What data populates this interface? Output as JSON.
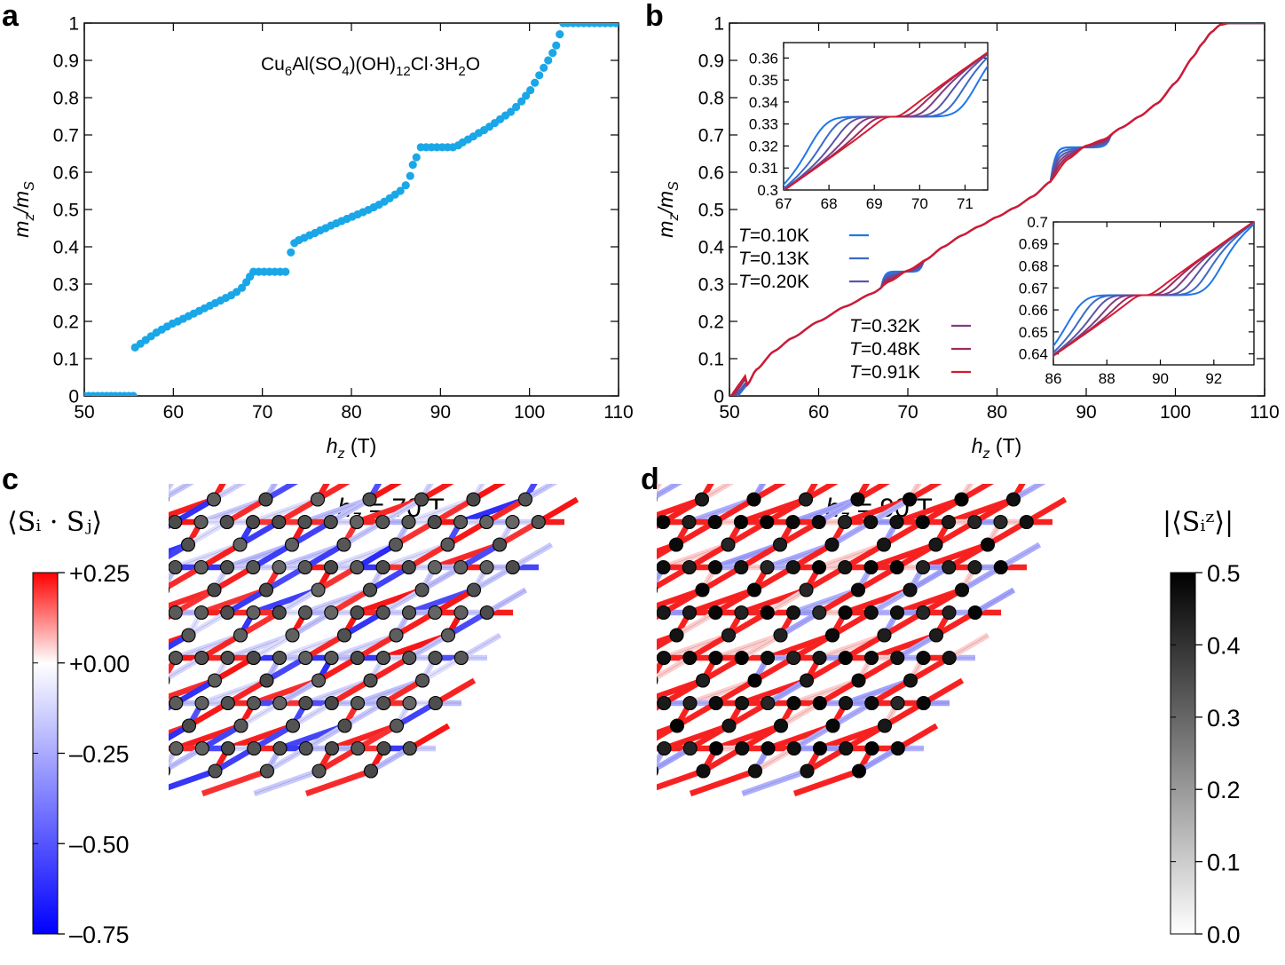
{
  "chart_data": [
    {
      "id": "a",
      "panel_label": "a",
      "type": "scatter",
      "annotation": "Cu6Al(SO4)(OH)12Cl·3H2O",
      "annotation_parts": {
        "base": "Cu",
        "s1": "6",
        "mid1": "Al(SO",
        "s2": "4",
        "mid2": ")(OH)",
        "s3": "12",
        "mid3": "Cl·3H",
        "s4": "2",
        "end": "O"
      },
      "xlabel": "h_z (T)",
      "ylabel": "m_z/m_S",
      "xlim": [
        50,
        110
      ],
      "ylim": [
        0,
        1
      ],
      "xticks": [
        "50",
        "60",
        "70",
        "80",
        "90",
        "100",
        "110"
      ],
      "yticks": [
        "0",
        "0.1",
        "0.2",
        "0.3",
        "0.4",
        "0.5",
        "0.6",
        "0.7",
        "0.8",
        "0.9",
        "1"
      ],
      "color": "#1aa7e8",
      "points": [
        [
          50,
          0
        ],
        [
          50.5,
          0
        ],
        [
          51,
          0
        ],
        [
          51.5,
          0
        ],
        [
          52,
          0
        ],
        [
          52.5,
          0
        ],
        [
          53,
          0
        ],
        [
          53.5,
          0
        ],
        [
          54,
          0
        ],
        [
          54.5,
          0
        ],
        [
          55,
          0
        ],
        [
          55.5,
          0
        ],
        [
          55.7,
          0.13
        ],
        [
          56.3,
          0.14
        ],
        [
          56.9,
          0.15
        ],
        [
          57.5,
          0.16
        ],
        [
          58.1,
          0.17
        ],
        [
          58.7,
          0.178
        ],
        [
          59.3,
          0.186
        ],
        [
          59.9,
          0.194
        ],
        [
          60.5,
          0.2
        ],
        [
          61.1,
          0.207
        ],
        [
          61.7,
          0.214
        ],
        [
          62.3,
          0.221
        ],
        [
          62.9,
          0.228
        ],
        [
          63.5,
          0.235
        ],
        [
          64.1,
          0.242
        ],
        [
          64.7,
          0.249
        ],
        [
          65.3,
          0.256
        ],
        [
          65.9,
          0.263
        ],
        [
          66.5,
          0.27
        ],
        [
          67.1,
          0.279
        ],
        [
          67.7,
          0.29
        ],
        [
          68.2,
          0.305
        ],
        [
          68.6,
          0.32
        ],
        [
          69,
          0.333
        ],
        [
          69.6,
          0.333
        ],
        [
          70.2,
          0.333
        ],
        [
          70.8,
          0.333
        ],
        [
          71.4,
          0.333
        ],
        [
          72,
          0.333
        ],
        [
          72.6,
          0.333
        ],
        [
          73.2,
          0.385
        ],
        [
          73.6,
          0.41
        ],
        [
          74.1,
          0.418
        ],
        [
          74.7,
          0.424
        ],
        [
          75.3,
          0.431
        ],
        [
          75.9,
          0.437
        ],
        [
          76.5,
          0.444
        ],
        [
          77.1,
          0.45
        ],
        [
          77.7,
          0.457
        ],
        [
          78.3,
          0.463
        ],
        [
          78.9,
          0.469
        ],
        [
          79.5,
          0.475
        ],
        [
          80.1,
          0.481
        ],
        [
          80.7,
          0.487
        ],
        [
          81.3,
          0.493
        ],
        [
          81.9,
          0.499
        ],
        [
          82.5,
          0.506
        ],
        [
          83.1,
          0.513
        ],
        [
          83.7,
          0.521
        ],
        [
          84.3,
          0.53
        ],
        [
          84.9,
          0.54
        ],
        [
          85.5,
          0.55
        ],
        [
          86.1,
          0.565
        ],
        [
          86.6,
          0.59
        ],
        [
          86.9,
          0.62
        ],
        [
          87.3,
          0.64
        ],
        [
          87.8,
          0.667
        ],
        [
          88.4,
          0.667
        ],
        [
          89,
          0.667
        ],
        [
          89.6,
          0.667
        ],
        [
          90.2,
          0.667
        ],
        [
          90.8,
          0.667
        ],
        [
          91.4,
          0.667
        ],
        [
          92,
          0.672
        ],
        [
          92.5,
          0.68
        ],
        [
          93.1,
          0.688
        ],
        [
          93.7,
          0.696
        ],
        [
          94.3,
          0.705
        ],
        [
          94.9,
          0.713
        ],
        [
          95.5,
          0.722
        ],
        [
          96.1,
          0.732
        ],
        [
          96.7,
          0.742
        ],
        [
          97.3,
          0.752
        ],
        [
          97.9,
          0.762
        ],
        [
          98.5,
          0.775
        ],
        [
          99.1,
          0.79
        ],
        [
          99.6,
          0.805
        ],
        [
          100.1,
          0.82
        ],
        [
          100.6,
          0.84
        ],
        [
          101.1,
          0.86
        ],
        [
          101.6,
          0.88
        ],
        [
          102.1,
          0.9
        ],
        [
          102.6,
          0.92
        ],
        [
          103,
          0.94
        ],
        [
          103.4,
          0.97
        ],
        [
          103.8,
          1
        ],
        [
          104.3,
          1
        ],
        [
          104.9,
          1
        ],
        [
          105.5,
          1
        ],
        [
          106.1,
          1
        ],
        [
          106.7,
          1
        ],
        [
          107.3,
          1
        ],
        [
          107.9,
          1
        ],
        [
          108.5,
          1
        ],
        [
          109.1,
          1
        ],
        [
          109.7,
          1
        ]
      ]
    },
    {
      "id": "b",
      "panel_label": "b",
      "type": "line",
      "xlabel": "h_z (T)",
      "ylabel": "m_z/m_S",
      "xlim": [
        50,
        110
      ],
      "ylim": [
        0,
        1
      ],
      "xticks": [
        "50",
        "60",
        "70",
        "80",
        "90",
        "100",
        "110"
      ],
      "yticks": [
        "0",
        "0.1",
        "0.2",
        "0.3",
        "0.4",
        "0.5",
        "0.6",
        "0.7",
        "0.8",
        "0.9",
        "1"
      ],
      "series": [
        {
          "name": "T=0.10K",
          "temperature": "0.10",
          "color": "#1f78e8"
        },
        {
          "name": "T=0.13K",
          "temperature": "0.13",
          "color": "#3d6ac8"
        },
        {
          "name": "T=0.20K",
          "temperature": "0.20",
          "color": "#5a55a8"
        },
        {
          "name": "T=0.32K",
          "temperature": "0.32",
          "color": "#7e3f82"
        },
        {
          "name": "T=0.48K",
          "temperature": "0.48",
          "color": "#a02a5c"
        },
        {
          "name": "T=0.91K",
          "temperature": "0.91",
          "color": "#d41a30"
        }
      ],
      "base_curve": [
        [
          50,
          0
        ],
        [
          51,
          0.005
        ],
        [
          52,
          0.03
        ],
        [
          53,
          0.07
        ],
        [
          55,
          0.12
        ],
        [
          57,
          0.155
        ],
        [
          60,
          0.2
        ],
        [
          63,
          0.24
        ],
        [
          66,
          0.275
        ],
        [
          68,
          0.305
        ],
        [
          70,
          0.337
        ],
        [
          72,
          0.365
        ],
        [
          74,
          0.4
        ],
        [
          76,
          0.43
        ],
        [
          78,
          0.455
        ],
        [
          80,
          0.48
        ],
        [
          82,
          0.505
        ],
        [
          84,
          0.535
        ],
        [
          86,
          0.575
        ],
        [
          88,
          0.633
        ],
        [
          90,
          0.672
        ],
        [
          92,
          0.69
        ],
        [
          94,
          0.72
        ],
        [
          96,
          0.75
        ],
        [
          98,
          0.785
        ],
        [
          100,
          0.84
        ],
        [
          102,
          0.91
        ],
        [
          103,
          0.945
        ],
        [
          104,
          0.975
        ],
        [
          105,
          0.995
        ],
        [
          106,
          1
        ],
        [
          110,
          1
        ]
      ],
      "plateaus": [
        {
          "h1": 67.6,
          "h2": 71.2,
          "m": 0.3333
        },
        {
          "h1": 86.6,
          "h2": 92.2,
          "m": 0.6667
        }
      ],
      "legend_unit": "K",
      "insets": [
        {
          "xlim": [
            67,
            71.5
          ],
          "ylim": [
            0.3,
            0.367
          ],
          "xticks": [
            "67",
            "68",
            "69",
            "70",
            "71"
          ],
          "yticks": [
            "0.3",
            "0.31",
            "0.32",
            "0.33",
            "0.34",
            "0.35",
            "0.36"
          ],
          "plateau": 0
        },
        {
          "xlim": [
            86,
            93.5
          ],
          "ylim": [
            0.635,
            0.7
          ],
          "xticks": [
            "86",
            "88",
            "90",
            "92"
          ],
          "yticks": [
            "0.64",
            "0.65",
            "0.66",
            "0.67",
            "0.68",
            "0.69",
            "0.7"
          ],
          "plateau": 1
        }
      ]
    },
    {
      "id": "c",
      "panel_label": "c",
      "type": "heatmap",
      "title": "h_z = 70 T",
      "quantity": "bond ⟨S_i · S_j⟩",
      "colorbar_title": "⟨S_i · S_j⟩",
      "colorbar_ticks": [
        "+0.25",
        "+0.00",
        "–0.25",
        "–0.50",
        "–0.75"
      ],
      "colorbar_range": [
        -0.75,
        0.25
      ],
      "site_gray": 0.33,
      "h_field": 70
    },
    {
      "id": "d",
      "panel_label": "d",
      "type": "heatmap",
      "title": "h_z = 90 T",
      "quantity": "site |⟨S_i^z⟩|",
      "colorbar_title": "|⟨S_i^z⟩|",
      "colorbar_ticks": [
        "0.5",
        "0.4",
        "0.3",
        "0.2",
        "0.1",
        "0.0"
      ],
      "colorbar_range": [
        0,
        0.5
      ],
      "site_gray": 0.5,
      "h_field": 90
    }
  ],
  "labels": {
    "panel_a": "a",
    "panel_b": "b",
    "panel_c": "c",
    "panel_d": "d",
    "title_c_h": "h",
    "title_c_sub": "z",
    "title_c_rest": " = 70 T",
    "title_d_h": "h",
    "title_d_sub": "z",
    "title_d_rest": " = 90 T",
    "xlabel_h": "h",
    "xlabel_sub": "z",
    "xlabel_rest": " (T)",
    "ylabel_m": "m",
    "ylabel_sub_z": "z",
    "ylabel_slash": "/m",
    "ylabel_sub_S": "S",
    "cbar_c_title": "⟨Sᵢ · Sⱼ⟩",
    "cbar_d_title": "|⟨Sᵢᶻ⟩|"
  }
}
